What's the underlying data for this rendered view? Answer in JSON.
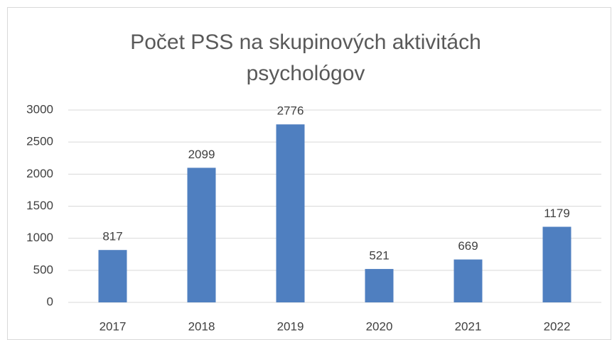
{
  "chart_data": {
    "type": "bar",
    "title": "Počet PSS na skupinových aktivitách psychológov",
    "categories": [
      "2017",
      "2018",
      "2019",
      "2020",
      "2021",
      "2022"
    ],
    "values": [
      817,
      2099,
      2776,
      521,
      669,
      1179
    ],
    "color": "#4f7fc0",
    "ylim": [
      0,
      3000
    ],
    "yticks": [
      0,
      500,
      1000,
      1500,
      2000,
      2500,
      3000
    ],
    "grid": true
  }
}
